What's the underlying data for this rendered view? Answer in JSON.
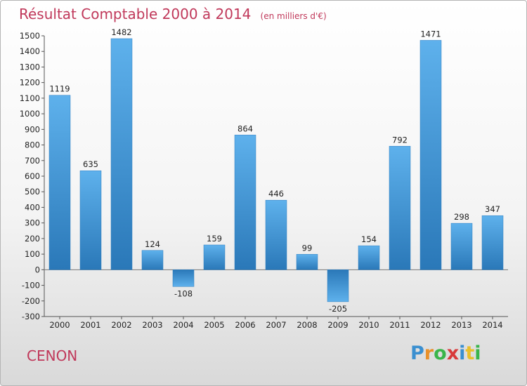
{
  "title": "Résultat Comptable 2000 à 2014",
  "subtitle": "(en milliers d'€)",
  "place": "CENON",
  "logo": {
    "letters": [
      "P",
      "r",
      "o",
      "x",
      "i",
      "t",
      "i"
    ],
    "colors": [
      "#3a8fd0",
      "#e8902a",
      "#3ab54a",
      "#d83a3a",
      "#3a8fd0",
      "#e8c02a",
      "#3ab54a"
    ]
  },
  "chart_data": {
    "type": "bar",
    "title": "Résultat Comptable 2000 à 2014",
    "subtitle": "(en milliers d'€)",
    "categories": [
      "2000",
      "2001",
      "2002",
      "2003",
      "2004",
      "2005",
      "2006",
      "2007",
      "2008",
      "2009",
      "2010",
      "2011",
      "2012",
      "2013",
      "2014"
    ],
    "values": [
      1119,
      635,
      1482,
      124,
      -108,
      159,
      864,
      446,
      99,
      -205,
      154,
      792,
      1471,
      298,
      347
    ],
    "ylim": [
      -300,
      1500
    ],
    "yticks": [
      -300,
      -200,
      -100,
      0,
      100,
      200,
      300,
      400,
      500,
      600,
      700,
      800,
      900,
      1000,
      1100,
      1200,
      1300,
      1400,
      1500
    ],
    "grid": false,
    "bar_color": "#3a8fd4"
  }
}
